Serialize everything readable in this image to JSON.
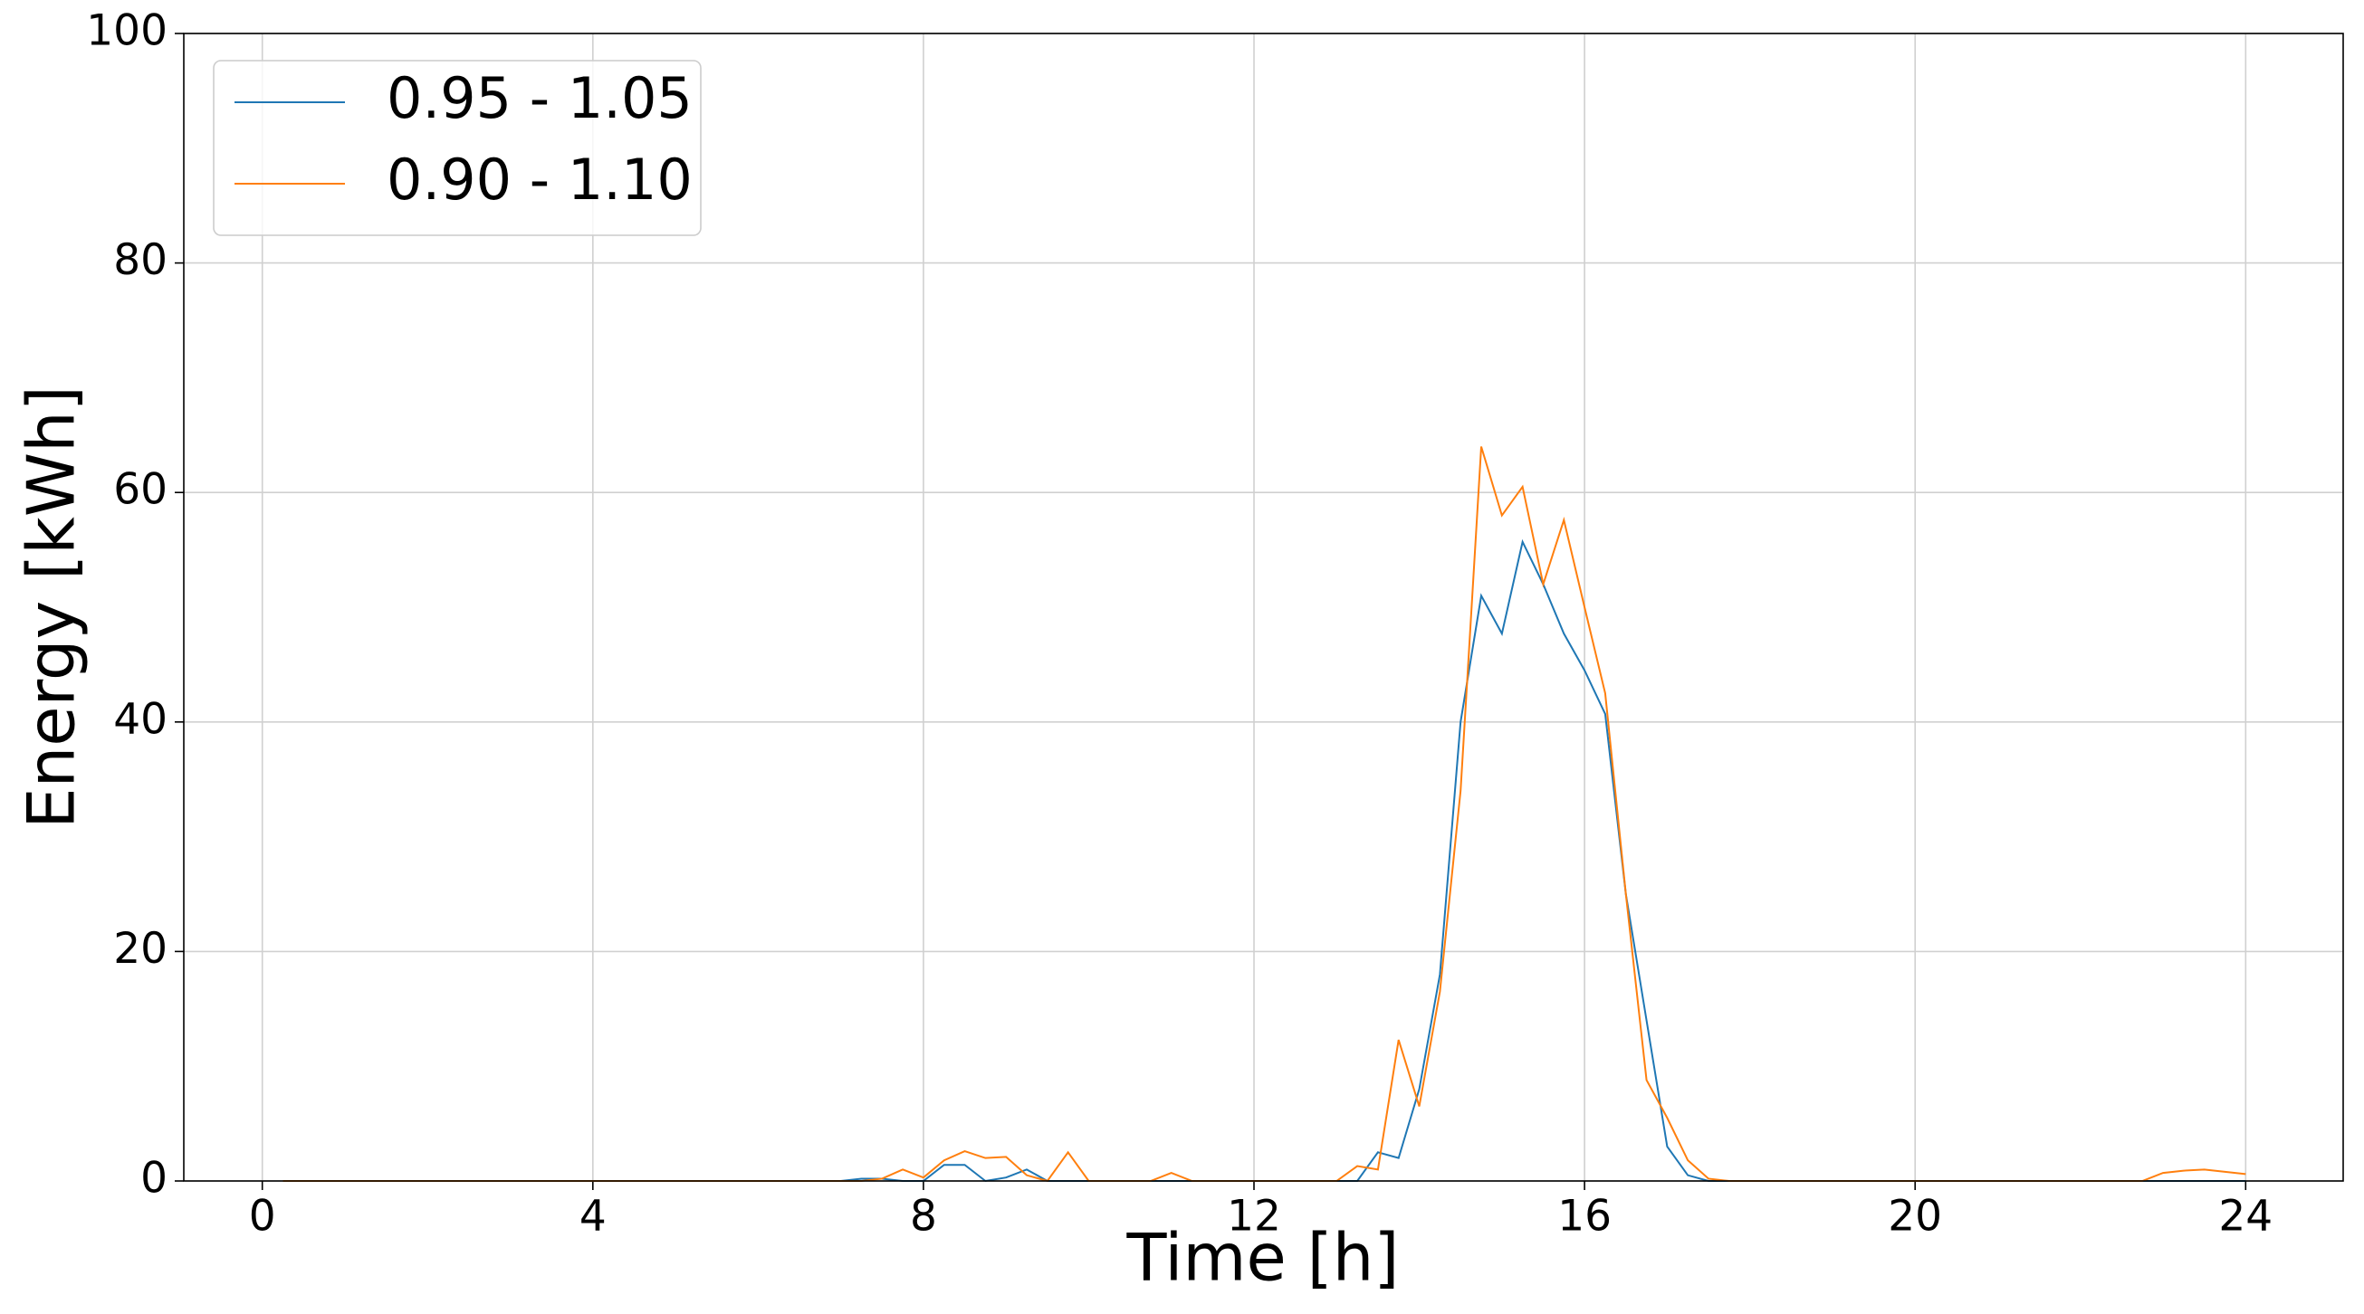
{
  "chart_data": {
    "type": "line",
    "xlabel": "Time [h]",
    "ylabel": "Energy [kWh]",
    "x": [
      0.25,
      0.5,
      0.75,
      1,
      1.25,
      1.5,
      1.75,
      2,
      2.25,
      2.5,
      2.75,
      3,
      3.25,
      3.5,
      3.75,
      4,
      4.25,
      4.5,
      4.75,
      5,
      5.25,
      5.5,
      5.75,
      6,
      6.25,
      6.5,
      6.75,
      7,
      7.25,
      7.5,
      7.75,
      8,
      8.25,
      8.5,
      8.75,
      9,
      9.25,
      9.5,
      9.75,
      10,
      10.25,
      10.5,
      10.75,
      11,
      11.25,
      11.5,
      11.75,
      12,
      12.25,
      12.5,
      12.75,
      13,
      13.25,
      13.5,
      13.75,
      14,
      14.25,
      14.5,
      14.75,
      15,
      15.25,
      15.5,
      15.75,
      16,
      16.25,
      16.5,
      16.75,
      17,
      17.25,
      17.5,
      17.75,
      18,
      18.25,
      18.5,
      18.75,
      19,
      19.25,
      19.5,
      19.75,
      20,
      20.25,
      20.5,
      20.75,
      21,
      21.25,
      21.5,
      21.75,
      22,
      22.25,
      22.5,
      22.75,
      23,
      23.25,
      23.5,
      23.75,
      24
    ],
    "series": [
      {
        "name": "0.95 - 1.05",
        "color": "#1f77b4",
        "values": [
          0,
          0,
          0,
          0,
          0,
          0,
          0,
          0,
          0,
          0,
          0,
          0,
          0,
          0,
          0,
          0,
          0,
          0,
          0,
          0,
          0,
          0,
          0,
          0,
          0,
          0,
          0,
          0,
          0.2,
          0.2,
          0,
          0,
          1.4,
          1.4,
          0,
          0.3,
          1.0,
          0,
          0,
          0,
          0,
          0,
          0,
          0,
          0,
          0,
          0,
          0,
          0,
          0,
          0,
          0,
          0,
          2.5,
          2.0,
          8,
          18,
          40,
          51,
          47.7,
          55.7,
          52,
          47.7,
          44.5,
          40.7,
          25,
          14,
          3,
          0.5,
          0,
          0,
          0,
          0,
          0,
          0,
          0,
          0,
          0,
          0,
          0,
          0,
          0,
          0,
          0,
          0,
          0,
          0,
          0,
          0,
          0,
          0,
          0,
          0,
          0,
          0,
          0
        ]
      },
      {
        "name": "0.90 - 1.10",
        "color": "#ff7f0e",
        "values": [
          0,
          0,
          0,
          0,
          0,
          0,
          0,
          0,
          0,
          0,
          0,
          0,
          0,
          0,
          0,
          0,
          0,
          0,
          0,
          0,
          0,
          0,
          0,
          0,
          0,
          0,
          0,
          0,
          0,
          0.2,
          1.0,
          0.3,
          1.8,
          2.6,
          2.0,
          2.1,
          0.5,
          0,
          2.5,
          0,
          0,
          0,
          0,
          0.7,
          0,
          0,
          0,
          0,
          0,
          0,
          0,
          0,
          1.3,
          1.0,
          12.3,
          6.5,
          16.5,
          34,
          64,
          58,
          60.5,
          52,
          57.6,
          50,
          42.5,
          25,
          8.8,
          5.5,
          1.8,
          0.2,
          0,
          0,
          0,
          0,
          0,
          0,
          0,
          0,
          0,
          0,
          0,
          0,
          0,
          0,
          0,
          0,
          0,
          0,
          0,
          0,
          0,
          0.7,
          0.9,
          1.0,
          0.8,
          0.6
        ]
      }
    ],
    "xlim": [
      -0.95,
      25.18
    ],
    "ylim": [
      0,
      100
    ],
    "xticks": [
      0,
      4,
      8,
      12,
      16,
      20,
      24
    ],
    "yticks": [
      0,
      20,
      40,
      60,
      80,
      100
    ],
    "grid": true,
    "legend": "upper left"
  }
}
